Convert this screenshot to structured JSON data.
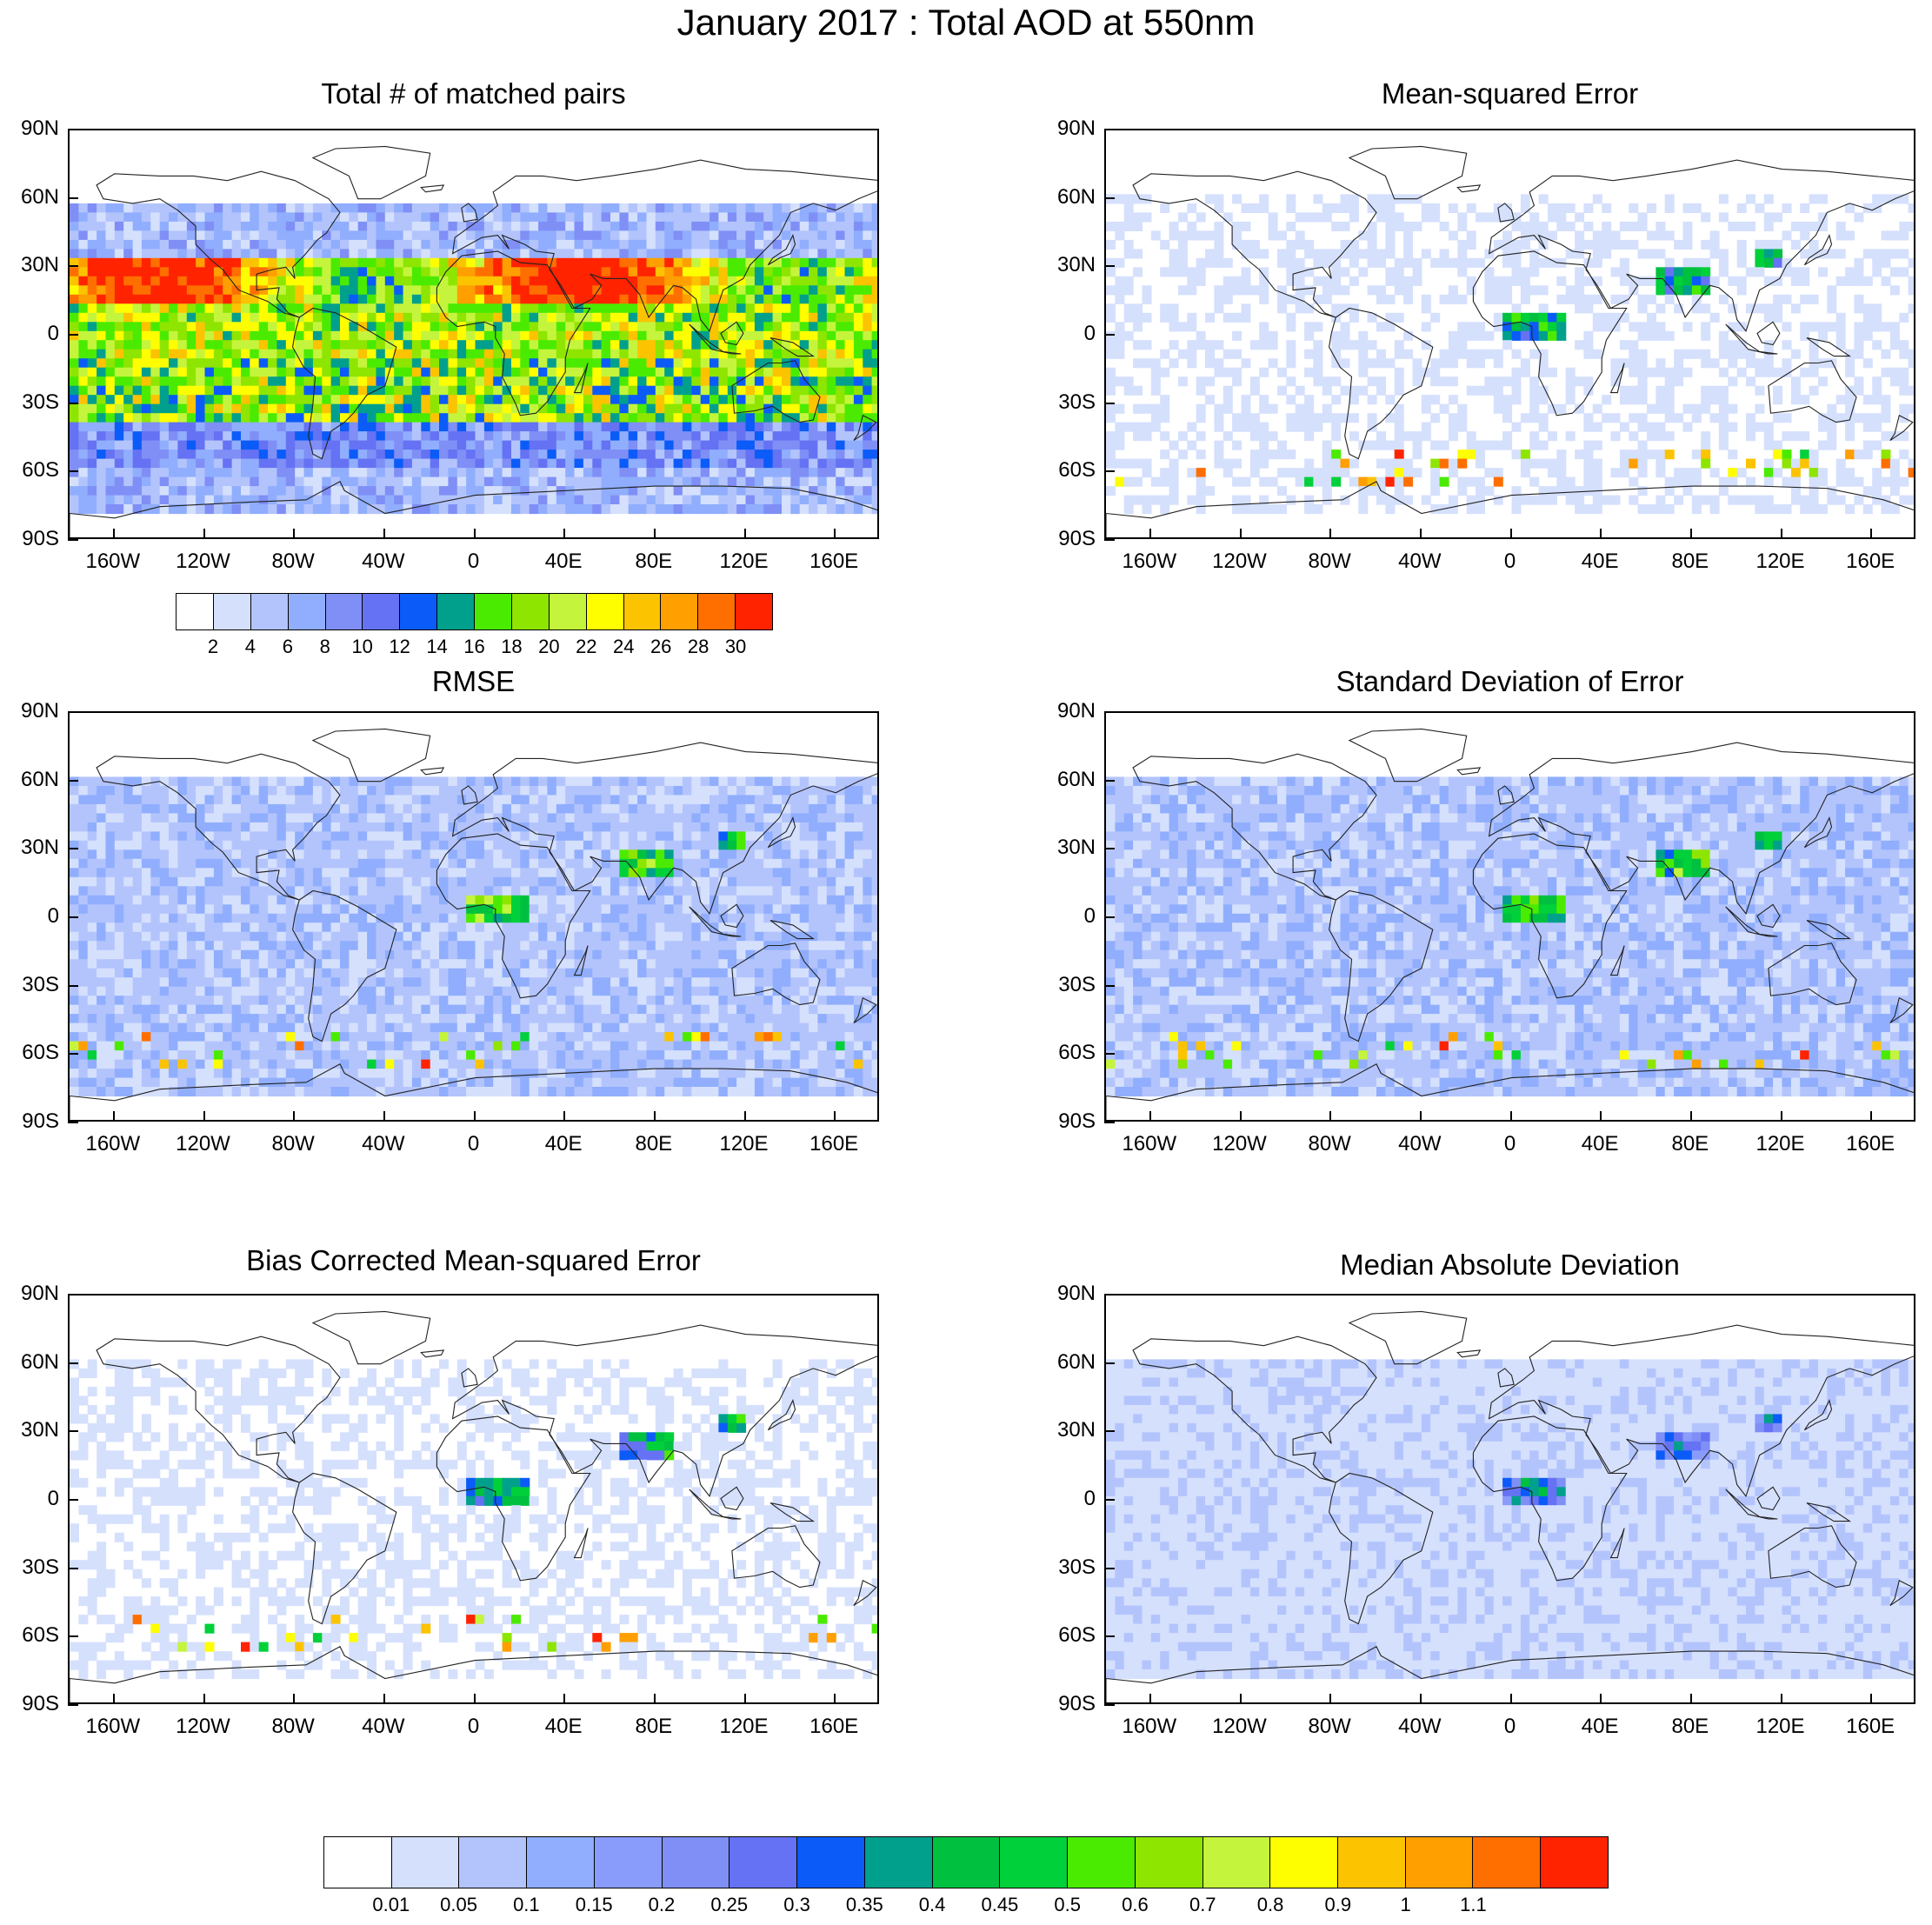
{
  "title": "January 2017 : Total AOD at 550nm",
  "lat_ticks": [
    "90N",
    "60N",
    "30N",
    "0",
    "30S",
    "60S",
    "90S"
  ],
  "lon_ticks": [
    "160W",
    "120W",
    "80W",
    "40W",
    "0",
    "40E",
    "80E",
    "120E",
    "160E"
  ],
  "lon_values": [
    -160,
    -120,
    -80,
    -40,
    0,
    40,
    80,
    120,
    160
  ],
  "lat_values": [
    90,
    60,
    30,
    0,
    -30,
    -60,
    -90
  ],
  "panels": [
    {
      "title": "Total # of matched pairs",
      "kind": "count"
    },
    {
      "title": "Mean-squared Error",
      "kind": "mse"
    },
    {
      "title": "RMSE",
      "kind": "rmse"
    },
    {
      "title": "Standard Deviation of Error",
      "kind": "std"
    },
    {
      "title": "Bias Corrected Mean-squared Error",
      "kind": "bcmse"
    },
    {
      "title": "Median Absolute Deviation",
      "kind": "mad"
    }
  ],
  "count_colorbar": {
    "colors": [
      "#ffffff",
      "#d5e0fd",
      "#b3c4fd",
      "#90aefd",
      "#7f8ff6",
      "#6572f3",
      "#0b5bf8",
      "#00a08c",
      "#4aeb00",
      "#8ee500",
      "#c4f53c",
      "#fefe00",
      "#fcc300",
      "#ff9f00",
      "#ff6f00",
      "#ff2300"
    ],
    "labels": [
      "2",
      "4",
      "6",
      "8",
      "10",
      "12",
      "14",
      "16",
      "18",
      "20",
      "22",
      "24",
      "26",
      "28",
      "30"
    ]
  },
  "error_colorbar": {
    "colors": [
      "#ffffff",
      "#d5e0fd",
      "#b3c4fd",
      "#90aefd",
      "#8a9cfb",
      "#7f8ff6",
      "#6572f3",
      "#0b5bf8",
      "#00a08c",
      "#00c040",
      "#00d03a",
      "#4aeb00",
      "#8ee500",
      "#c4f53c",
      "#fefe00",
      "#fcc300",
      "#ff9f00",
      "#ff6f00",
      "#ff2300"
    ],
    "labels": [
      "0.01",
      "0.05",
      "0.1",
      "0.15",
      "0.2",
      "0.25",
      "0.3",
      "0.35",
      "0.4",
      "0.45",
      "0.5",
      "0.6",
      "0.7",
      "0.8",
      "0.9",
      "1",
      "1.1"
    ]
  }
}
